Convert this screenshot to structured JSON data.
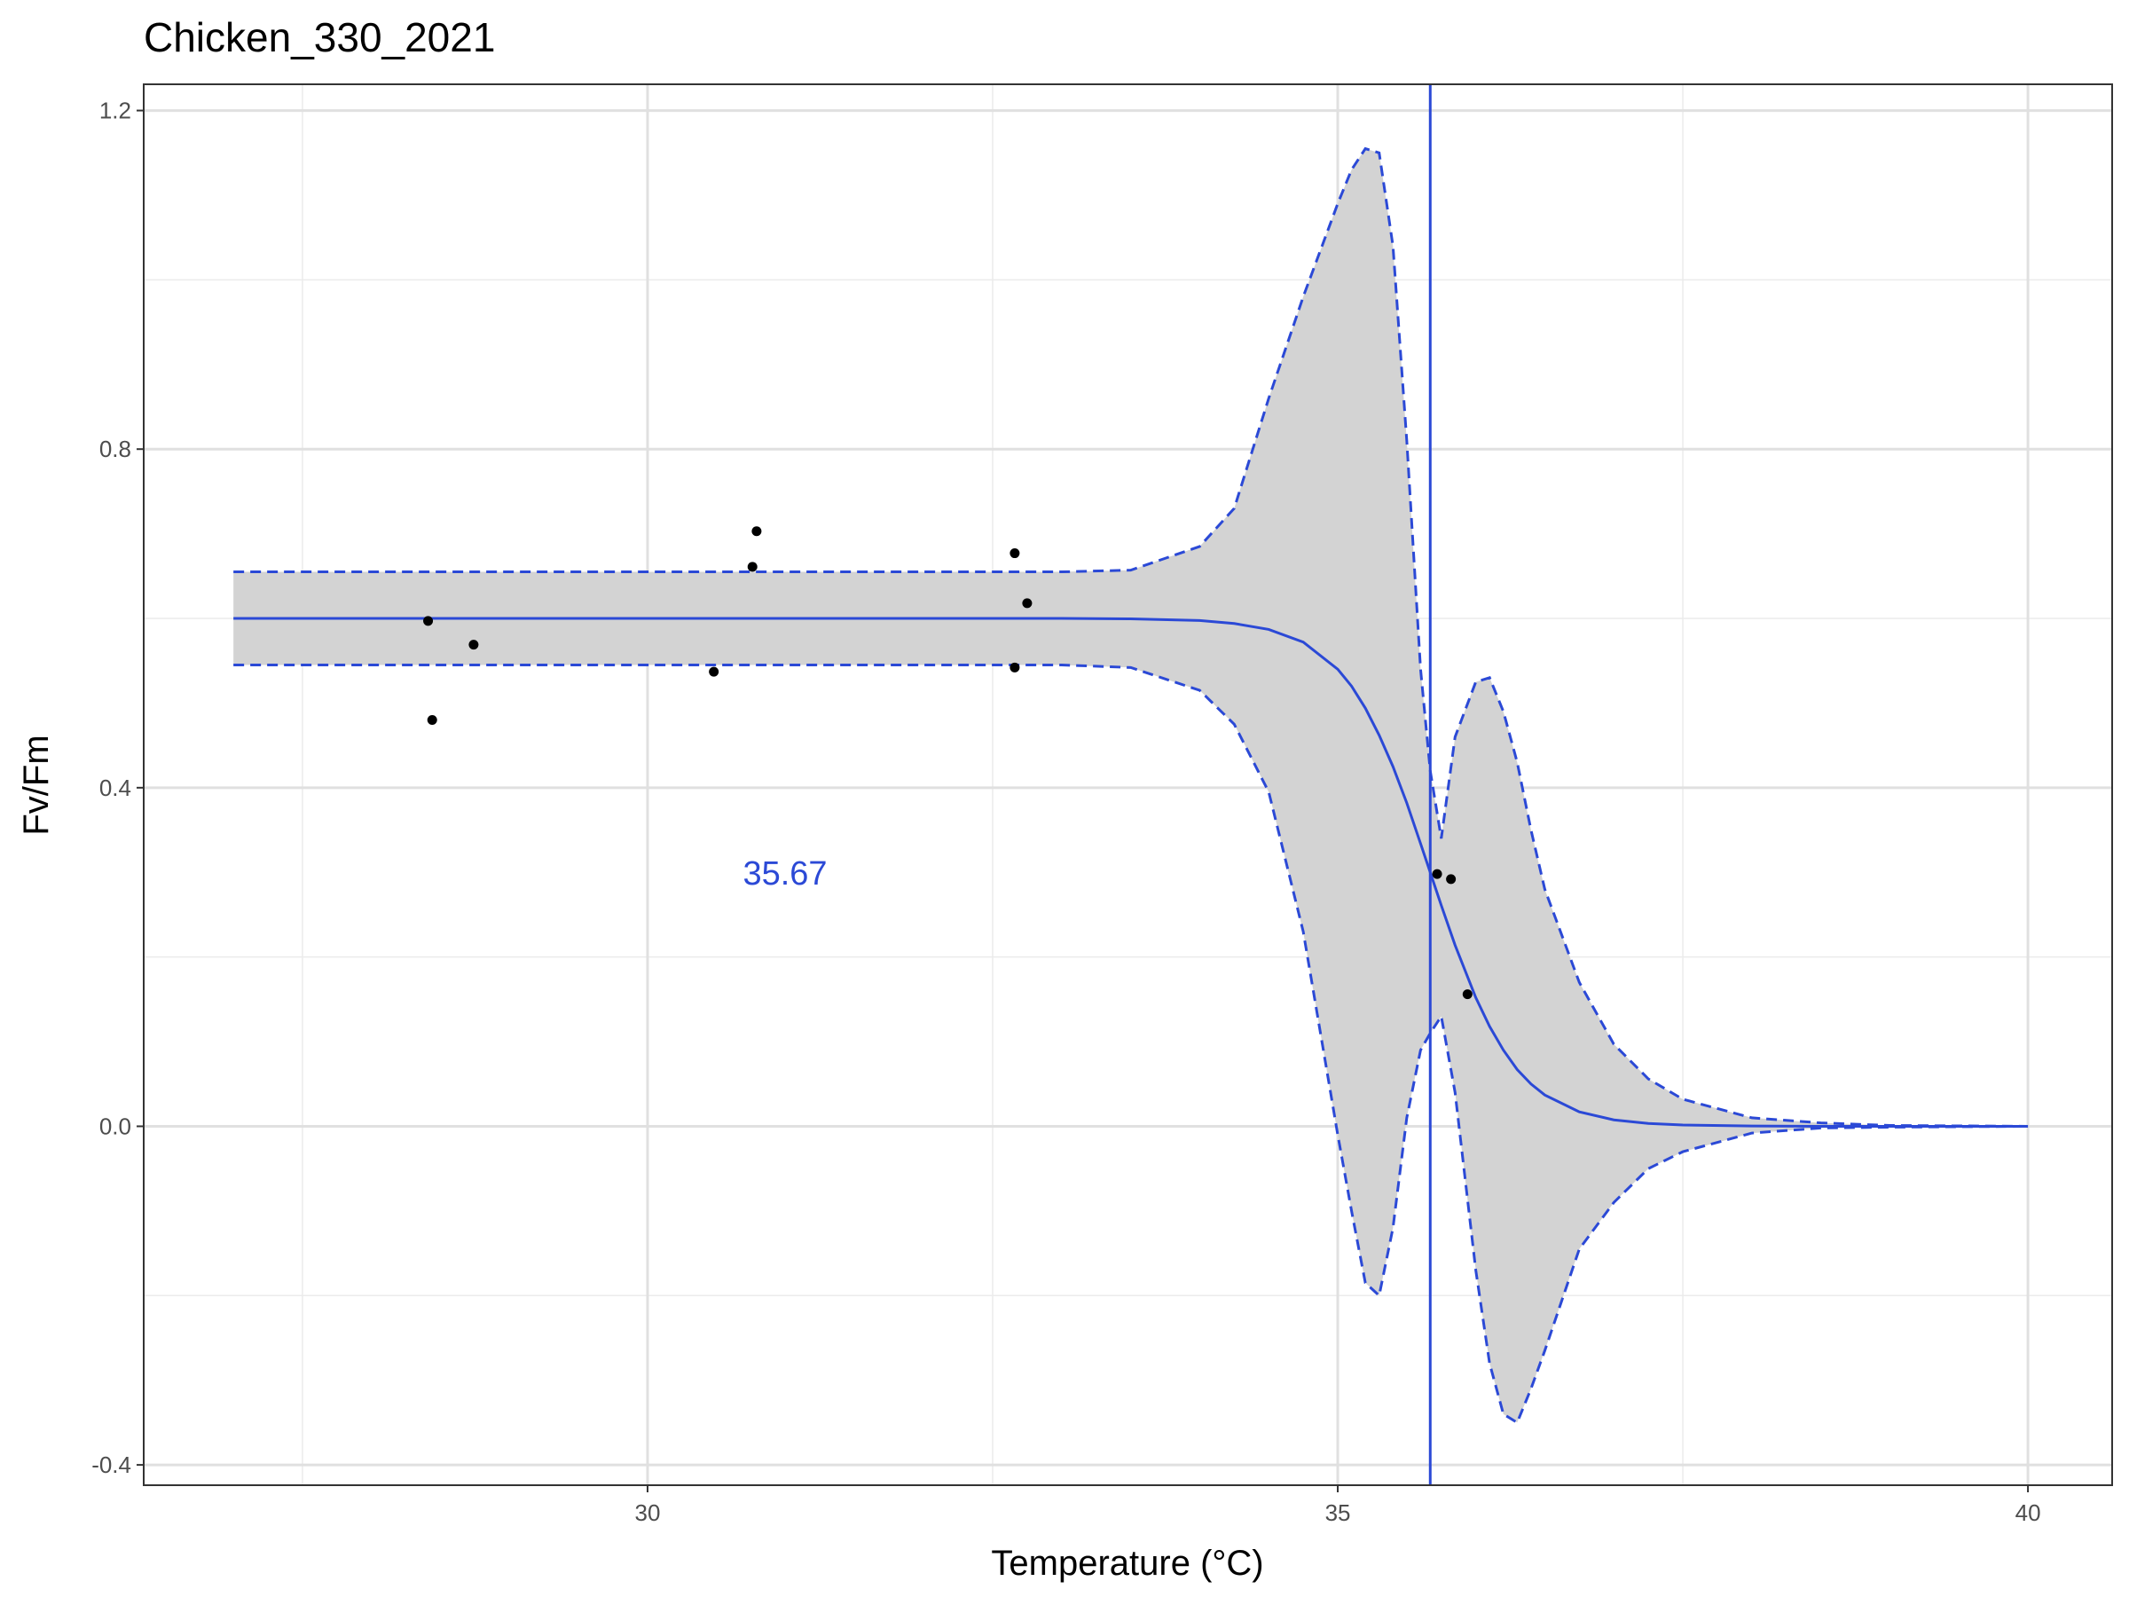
{
  "chart_data": {
    "type": "line",
    "title": "Chicken_330_2021",
    "x_label": "Temperature (°C)",
    "y_label": "Fv/Fm",
    "annotation": "35.67",
    "vline": 35.67,
    "line_color": "#2b49d6",
    "ribbon_color": "#d3d3d3",
    "point_color": "#000000",
    "grid": true,
    "xlim": [
      26.35,
      40.61
    ],
    "ylim": [
      -0.424,
      1.231
    ],
    "xticks": [
      30,
      35,
      40
    ],
    "xminor": [
      27.5,
      32.5,
      37.5
    ],
    "yticks": [
      -0.4,
      {
        "value": 0,
        "label": "0.0"
      },
      0.4,
      0.8,
      1.2
    ],
    "yminor": [
      -0.2,
      0.2,
      0.6,
      1.0
    ],
    "x": [
      27,
      28,
      29,
      30,
      31,
      32,
      33,
      33.5,
      34,
      34.25,
      34.5,
      34.75,
      35,
      35.1,
      35.2,
      35.3,
      35.4,
      35.5,
      35.6,
      35.67,
      35.75,
      35.85,
      36,
      36.1,
      36.2,
      36.3,
      36.4,
      36.5,
      36.75,
      37,
      37.25,
      37.5,
      38,
      38.5,
      39,
      40
    ],
    "fit": [
      0.6,
      0.6,
      0.6,
      0.6,
      0.6,
      0.6,
      0.6,
      0.5995,
      0.5975,
      0.594,
      0.587,
      0.572,
      0.54,
      0.52,
      0.494,
      0.462,
      0.425,
      0.382,
      0.334,
      0.3,
      0.261,
      0.214,
      0.152,
      0.118,
      0.09,
      0.067,
      0.05,
      0.037,
      0.017,
      0.0076,
      0.0034,
      0.0015,
      0.0003,
      0,
      0,
      0
    ],
    "upper": [
      0.655,
      0.655,
      0.655,
      0.655,
      0.655,
      0.655,
      0.655,
      0.657,
      0.685,
      0.73,
      0.86,
      0.98,
      1.09,
      1.13,
      1.155,
      1.15,
      1.04,
      0.81,
      0.54,
      0.42,
      0.34,
      0.46,
      0.525,
      0.53,
      0.49,
      0.43,
      0.35,
      0.28,
      0.17,
      0.097,
      0.056,
      0.032,
      0.01,
      0.004,
      0.001,
      0
    ],
    "lower": [
      0.545,
      0.545,
      0.545,
      0.545,
      0.545,
      0.545,
      0.545,
      0.542,
      0.515,
      0.475,
      0.395,
      0.23,
      -0.01,
      -0.1,
      -0.185,
      -0.2,
      -0.12,
      0.01,
      0.09,
      0.11,
      0.13,
      0.04,
      -0.17,
      -0.28,
      -0.34,
      -0.35,
      -0.31,
      -0.265,
      -0.145,
      -0.09,
      -0.05,
      -0.03,
      -0.008,
      -0.002,
      -0.001,
      0
    ],
    "points": {
      "x": [
        28.41,
        28.44,
        28.74,
        30.48,
        30.76,
        30.79,
        32.66,
        32.75,
        32.66,
        35.72,
        35.82,
        35.94
      ],
      "y": [
        0.597,
        0.48,
        0.569,
        0.537,
        0.661,
        0.703,
        0.677,
        0.618,
        0.542,
        0.298,
        0.292,
        0.156
      ]
    }
  }
}
